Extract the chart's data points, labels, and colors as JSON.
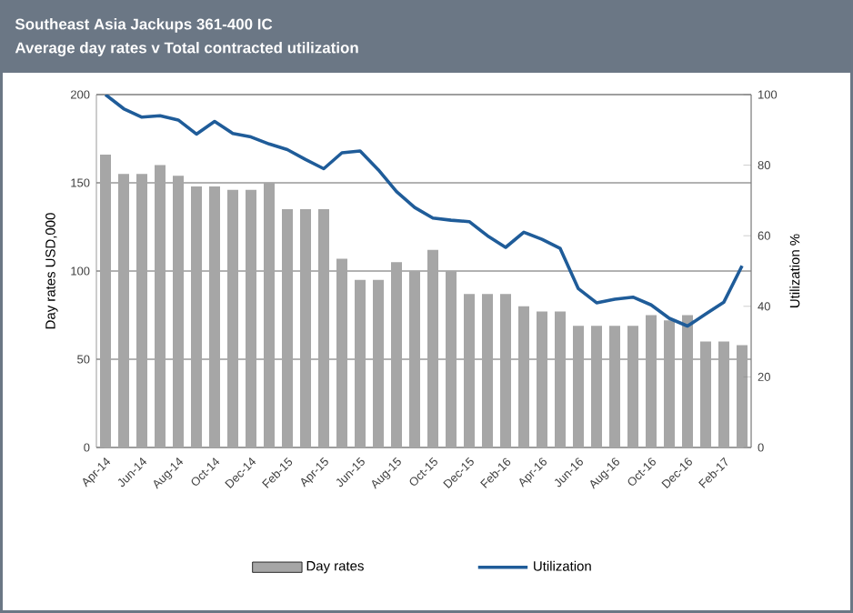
{
  "chart_data": {
    "type": "bar",
    "title": "Southeast Asia Jackups 361-400 IC",
    "subtitle": "Average day rates v Total contracted utilization",
    "categories": [
      "Apr-14",
      null,
      "Jun-14",
      null,
      "Aug-14",
      null,
      "Oct-14",
      null,
      "Dec-14",
      null,
      "Feb-15",
      null,
      "Apr-15",
      null,
      "Jun-15",
      null,
      "Aug-15",
      null,
      "Oct-15",
      null,
      "Dec-15",
      null,
      "Feb-16",
      null,
      "Apr-16",
      null,
      "Jun-16",
      null,
      "Aug-16",
      null,
      "Oct-16",
      null,
      "Dec-16",
      null,
      "Feb-17",
      null
    ],
    "series": [
      {
        "name": "Day rates",
        "color": "#a6a6a6",
        "values": [
          166,
          155,
          155,
          160,
          154,
          148,
          148,
          146,
          146,
          150,
          135,
          135,
          135,
          107,
          95,
          95,
          105,
          100,
          112,
          100,
          87,
          87,
          87,
          80,
          77,
          77,
          69,
          69,
          69,
          69,
          75,
          72,
          75,
          60,
          60,
          58
        ]
      },
      {
        "name": "Utilization",
        "type": "line",
        "axis": "y2",
        "color": "#1f5c99",
        "values": [
          100,
          96,
          93.6,
          94,
          92.8,
          88.8,
          92.4,
          89,
          88,
          86,
          84.4,
          81.6,
          79,
          83.5,
          84,
          78.7,
          72.5,
          68,
          65,
          64.4,
          64,
          60,
          56.7,
          61,
          59,
          56.4,
          45,
          41,
          42,
          42.6,
          40.4,
          36.6,
          34.4,
          37.8,
          41.2,
          51.5
        ]
      }
    ],
    "ylabel": "Day rates USD,000",
    "y2label": "Utilization %",
    "ylim": [
      0,
      200
    ],
    "yticks": [
      0,
      50,
      100,
      150,
      200
    ],
    "y2lim": [
      0,
      100
    ],
    "y2ticks": [
      0,
      20,
      40,
      60,
      80,
      100
    ],
    "grid": "y",
    "legend": "bottom"
  }
}
